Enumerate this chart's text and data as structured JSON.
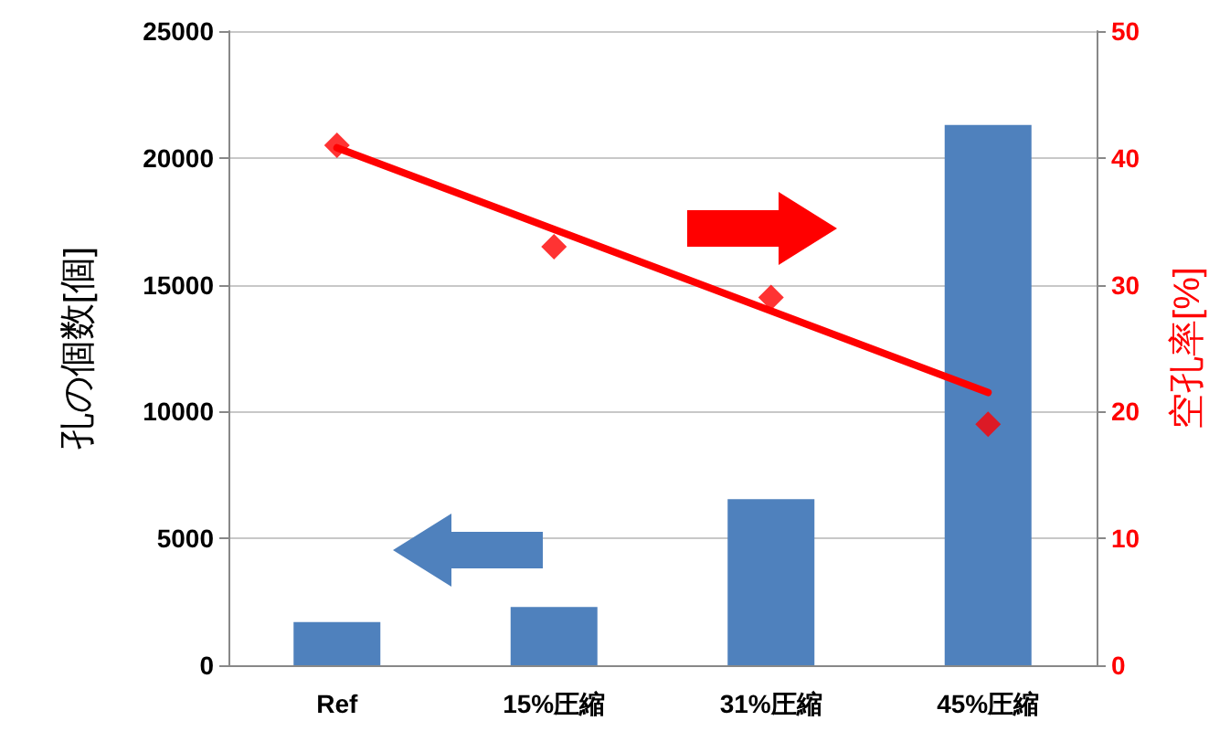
{
  "chart_data": {
    "type": "bar",
    "ylabel": "孔の個数[個]",
    "y2label": "空孔率[%]",
    "categories": [
      "Ref",
      "15%圧縮",
      "31%圧縮",
      "45%圧縮"
    ],
    "series": [
      {
        "color": "#4f81bd",
        "values": [
          1700,
          2300,
          6550,
          21300
        ]
      },
      {
        "type": "scatter",
        "axis": "y2",
        "color": "#ff0000",
        "marker": "diamond",
        "x": [
          "Ref",
          "15%圧縮",
          "31%圧縮",
          "45%圧縮"
        ],
        "values": [
          41,
          33,
          29,
          19
        ]
      },
      {
        "type": "line",
        "axis": "y2",
        "color": "#ff0000",
        "marker": "none",
        "line_style": "solid",
        "x": [
          "Ref",
          "45%圧縮"
        ],
        "values": [
          40.8,
          21.5
        ]
      }
    ],
    "ylim": [
      0,
      25000
    ],
    "yticks": [
      0,
      5000,
      10000,
      15000,
      20000,
      25000
    ],
    "y2lim": [
      0,
      50
    ],
    "y2ticks": [
      0,
      10,
      20,
      30,
      40,
      50
    ],
    "grid": "y"
  }
}
